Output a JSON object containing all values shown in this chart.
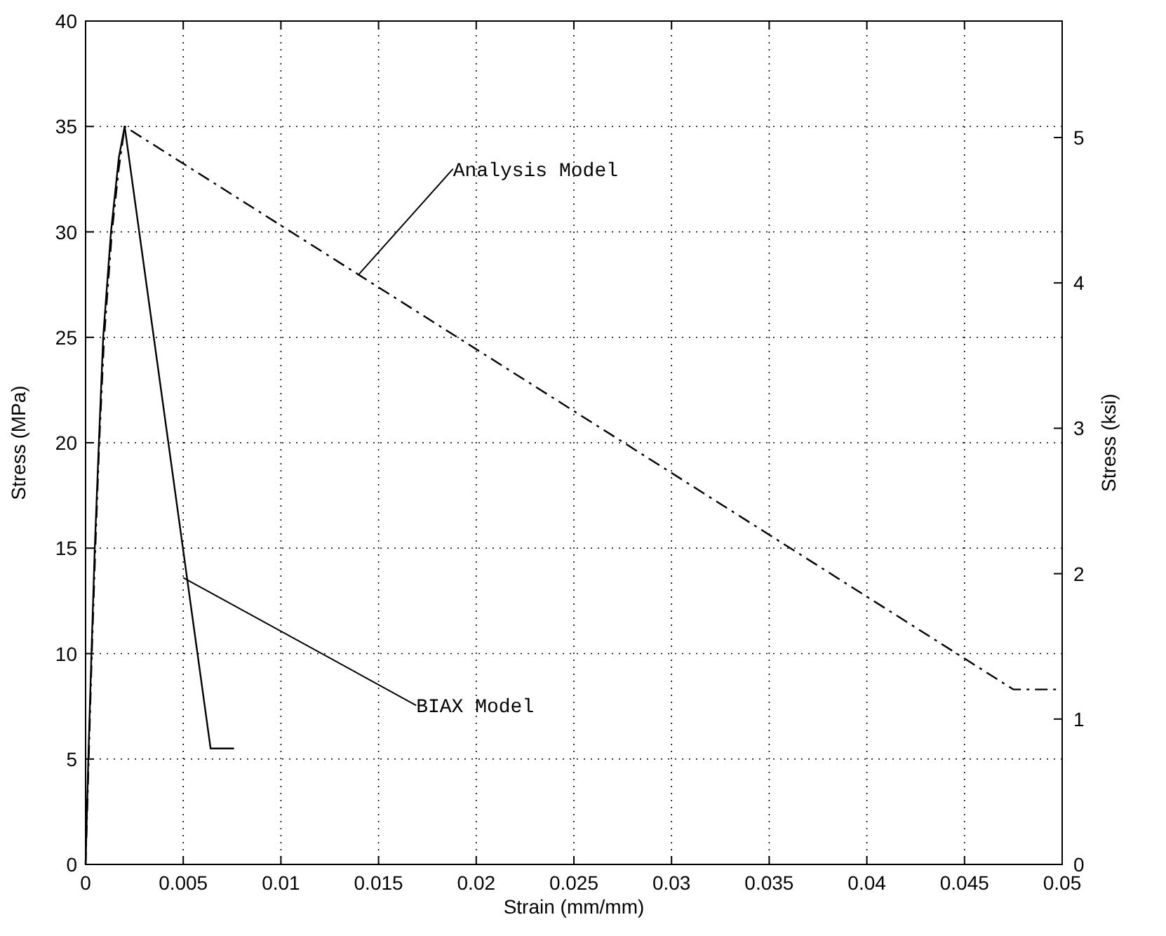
{
  "chart_data": {
    "type": "line",
    "xlabel": "Strain (mm/mm)",
    "ylabel": "Stress (MPa)",
    "y2label": "Stress (ksi)",
    "xlim": [
      0,
      0.05
    ],
    "xticks": [
      0,
      0.005,
      0.01,
      0.015,
      0.02,
      0.025,
      0.03,
      0.035,
      0.04,
      0.045,
      0.05
    ],
    "ylim": [
      0,
      40
    ],
    "yticks": [
      0,
      5,
      10,
      15,
      20,
      25,
      30,
      35,
      40
    ],
    "y2lim": [
      0,
      5.801
    ],
    "y2ticks": [
      0,
      1,
      2,
      3,
      4,
      5
    ],
    "grid": true,
    "marker": "none",
    "series": [
      {
        "color": "#000000",
        "line_style": "solid",
        "x": [
          0,
          0.00014,
          0.0003,
          0.00047,
          0.00068,
          0.0009,
          0.0013,
          0.0017,
          0.002,
          0.0064,
          0.0076
        ],
        "values": [
          0,
          5,
          10,
          15,
          20,
          25,
          30,
          33.5,
          35,
          5.5,
          5.5
        ]
      },
      {
        "color": "#000000",
        "line_style": "dashed",
        "x": [
          0,
          0.00016,
          0.00032,
          0.0005,
          0.0007,
          0.00095,
          0.00135,
          0.0017,
          0.002,
          0.0475,
          0.05
        ],
        "values": [
          0,
          5,
          10,
          15,
          20,
          25,
          30,
          33,
          35,
          8.3,
          8.3
        ]
      }
    ],
    "annotations": [
      {
        "text": "Analysis Model",
        "x": 0.014,
        "y": 28
      },
      {
        "text": "BIAX Model",
        "x": 0.005,
        "y": 13.6
      }
    ]
  }
}
